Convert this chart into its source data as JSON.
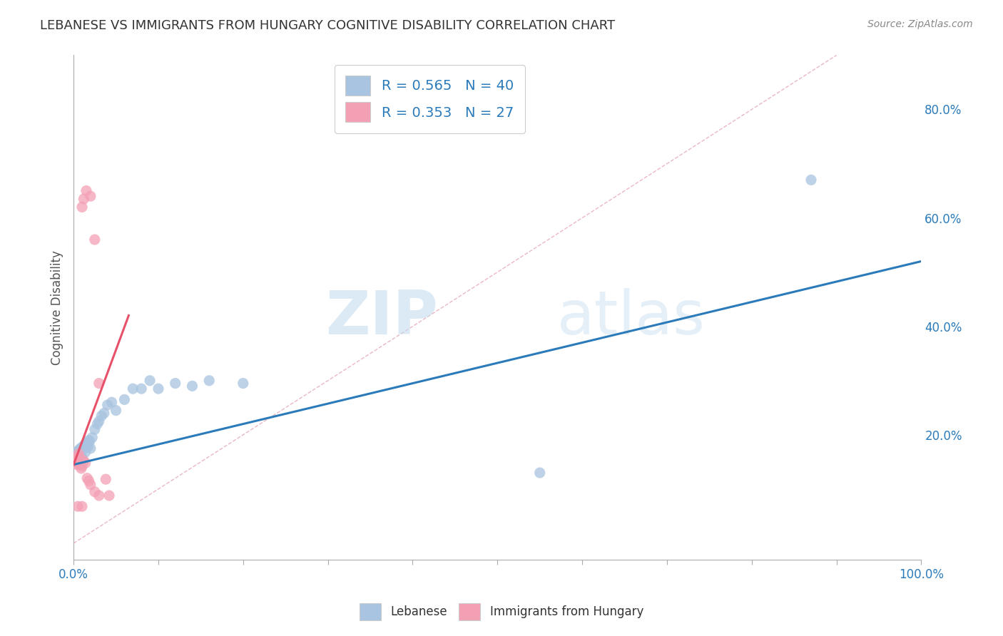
{
  "title": "LEBANESE VS IMMIGRANTS FROM HUNGARY COGNITIVE DISABILITY CORRELATION CHART",
  "source": "Source: ZipAtlas.com",
  "ylabel": "Cognitive Disability",
  "xlim": [
    0,
    1.0
  ],
  "ylim": [
    -0.03,
    0.9
  ],
  "x_ticks": [
    0.0,
    0.1,
    0.2,
    0.3,
    0.4,
    0.5,
    0.6,
    0.7,
    0.8,
    0.9,
    1.0
  ],
  "y_ticks_right": [
    0.2,
    0.4,
    0.6,
    0.8
  ],
  "blue_R": 0.565,
  "blue_N": 40,
  "pink_R": 0.353,
  "pink_N": 27,
  "blue_color": "#a8c4e0",
  "pink_color": "#f4a0b4",
  "blue_line_color": "#2b7bba",
  "pink_line_color": "#e8516a",
  "legend_text_color": "#2b7bba",
  "watermark_zip": "ZIP",
  "watermark_atlas": "atlas",
  "blue_scatter_x": [
    0.001,
    0.002,
    0.003,
    0.004,
    0.005,
    0.006,
    0.007,
    0.008,
    0.009,
    0.01,
    0.011,
    0.012,
    0.013,
    0.014,
    0.015,
    0.016,
    0.017,
    0.018,
    0.019,
    0.02,
    0.022,
    0.025,
    0.028,
    0.03,
    0.033,
    0.036,
    0.04,
    0.045,
    0.05,
    0.06,
    0.07,
    0.08,
    0.09,
    0.1,
    0.12,
    0.14,
    0.16,
    0.2,
    0.55,
    0.87
  ],
  "blue_scatter_y": [
    0.155,
    0.16,
    0.15,
    0.165,
    0.17,
    0.168,
    0.172,
    0.175,
    0.162,
    0.158,
    0.178,
    0.18,
    0.175,
    0.168,
    0.185,
    0.182,
    0.178,
    0.19,
    0.188,
    0.175,
    0.195,
    0.21,
    0.22,
    0.225,
    0.235,
    0.24,
    0.255,
    0.26,
    0.245,
    0.265,
    0.285,
    0.285,
    0.3,
    0.285,
    0.295,
    0.29,
    0.3,
    0.295,
    0.13,
    0.67
  ],
  "pink_scatter_x": [
    0.001,
    0.002,
    0.003,
    0.004,
    0.005,
    0.006,
    0.007,
    0.008,
    0.009,
    0.01,
    0.012,
    0.014,
    0.016,
    0.018,
    0.02,
    0.025,
    0.03,
    0.01,
    0.012,
    0.015,
    0.02,
    0.025,
    0.03,
    0.005,
    0.01,
    0.038,
    0.042
  ],
  "pink_scatter_y": [
    0.155,
    0.148,
    0.158,
    0.145,
    0.152,
    0.165,
    0.158,
    0.145,
    0.138,
    0.142,
    0.152,
    0.148,
    0.12,
    0.115,
    0.108,
    0.095,
    0.088,
    0.62,
    0.635,
    0.65,
    0.64,
    0.56,
    0.295,
    0.068,
    0.068,
    0.118,
    0.088
  ],
  "blue_line_x": [
    0.0,
    1.0
  ],
  "blue_line_y": [
    0.145,
    0.52
  ],
  "pink_line_x": [
    0.0,
    0.065
  ],
  "pink_line_y": [
    0.145,
    0.42
  ],
  "diag_line_x": [
    0.0,
    0.9
  ],
  "diag_line_y": [
    0.0,
    0.9
  ],
  "diag_color": "#e8b0bc"
}
